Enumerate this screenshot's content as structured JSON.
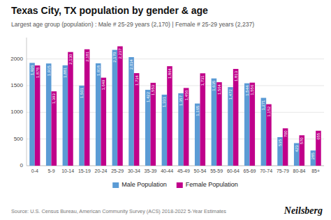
{
  "chart_data": {
    "type": "bar",
    "title": "Texas City, TX population by gender & age",
    "subtitle": "Largest age group (population) : Male # 25-29 years (2,170) | Female # 25-29 years (2,237)",
    "annotations": [
      "Source: U.S. Census Bureau, American Community Survey (ACS) 2018-2022 5-Year Estimates",
      "Neilsberg"
    ],
    "categories": [
      "0-4",
      "5-9",
      "10-14",
      "15-19",
      "20-24",
      "25-29",
      "30-34",
      "35-39",
      "40-44",
      "45-49",
      "50-54",
      "55-59",
      "60-64",
      "65-69",
      "70-74",
      "75-79",
      "80-84",
      "85+"
    ],
    "series": [
      {
        "name": "Male Population",
        "color": "#5b9bd5",
        "values": [
          1926,
          1915,
          1881,
          1501,
          1918,
          2170,
          2034,
          1422,
          1331,
          1357,
          1165,
          1635,
          1472,
          1544,
          1271,
          535,
          423,
          285
        ],
        "value_labels": [
          "1,926",
          "1,915",
          "1,881",
          "1,501",
          "1,918",
          "2,170",
          "2,034",
          "1,422",
          "1,331",
          "1,357",
          "1,165",
          "1,635",
          "1,472",
          "1,544",
          "1,271",
          "535",
          "423",
          "285"
        ]
      },
      {
        "name": "Female Population",
        "color": "#c0008a",
        "values": [
          1878,
          1393,
          2130,
          2181,
          1649,
          2237,
          1734,
          1553,
          1864,
          1456,
          1731,
          1564,
          1813,
          1556,
          1152,
          700,
          570,
          655
        ],
        "value_labels": [
          "1,878",
          "1,393",
          "2,130",
          "2,181",
          "1,649",
          "2,237",
          "1,734",
          "1,553",
          "1,864",
          "1,456",
          "1,731",
          "1,564",
          "1,813",
          "1,556",
          "1,152",
          "700",
          "570",
          "655"
        ]
      }
    ],
    "ylim": [
      0,
      2400
    ],
    "yticks": [
      0,
      500,
      1000,
      1500,
      2000
    ],
    "grid": true,
    "legend": "bottom",
    "data_labels": true
  }
}
